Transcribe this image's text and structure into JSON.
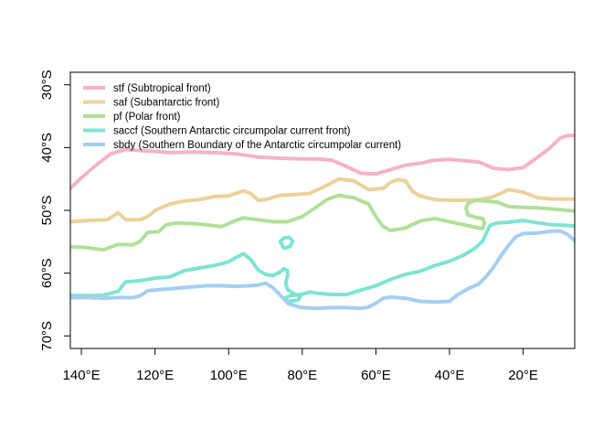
{
  "chart_data": {
    "type": "line",
    "title": "",
    "xlabel": "",
    "ylabel": "",
    "x_ticks": [
      {
        "value": 140,
        "label": "140°E"
      },
      {
        "value": 120,
        "label": "120°E"
      },
      {
        "value": 100,
        "label": "100°E"
      },
      {
        "value": 80,
        "label": "80°E"
      },
      {
        "value": 60,
        "label": "60°E"
      },
      {
        "value": 40,
        "label": "40°E"
      },
      {
        "value": 20,
        "label": "20°E"
      }
    ],
    "y_ticks": [
      {
        "value": -30,
        "label": "30°S"
      },
      {
        "value": -40,
        "label": "40°S"
      },
      {
        "value": -50,
        "label": "50°S"
      },
      {
        "value": -60,
        "label": "60°S"
      },
      {
        "value": -70,
        "label": "70°S"
      }
    ],
    "xlim": [
      143,
      6
    ],
    "ylim": [
      -72,
      -28
    ],
    "grid": false,
    "legend_position": "top-left",
    "series": [
      {
        "name": "stf (Subtropical front)",
        "color": "#f4b4c6",
        "points": [
          [
            143,
            -46.5
          ],
          [
            140,
            -44.8
          ],
          [
            136,
            -42.8
          ],
          [
            132,
            -41
          ],
          [
            128,
            -40.3
          ],
          [
            124,
            -40.5
          ],
          [
            120,
            -40.6
          ],
          [
            116,
            -40.8
          ],
          [
            110,
            -40.7
          ],
          [
            104,
            -40.8
          ],
          [
            98,
            -41
          ],
          [
            92,
            -41.5
          ],
          [
            86,
            -41.7
          ],
          [
            80,
            -41.8
          ],
          [
            76,
            -41.8
          ],
          [
            72,
            -42
          ],
          [
            68,
            -43
          ],
          [
            64,
            -44.1
          ],
          [
            60,
            -44.2
          ],
          [
            56,
            -43.5
          ],
          [
            52,
            -42.8
          ],
          [
            48,
            -42.5
          ],
          [
            44,
            -42
          ],
          [
            40,
            -41.9
          ],
          [
            36,
            -42.1
          ],
          [
            32,
            -42.3
          ],
          [
            28,
            -43.3
          ],
          [
            24,
            -43.5
          ],
          [
            20,
            -43.2
          ],
          [
            16,
            -41.5
          ],
          [
            13,
            -40.2
          ],
          [
            10,
            -38.5
          ],
          [
            8,
            -38.1
          ],
          [
            6,
            -38.1
          ]
        ]
      },
      {
        "name": "saf (Subantarctic front)",
        "color": "#ebd29b",
        "points": [
          [
            143,
            -51.8
          ],
          [
            138,
            -51.6
          ],
          [
            133,
            -51.5
          ],
          [
            130,
            -50.4
          ],
          [
            128,
            -51.5
          ],
          [
            124,
            -51.5
          ],
          [
            122,
            -51
          ],
          [
            120,
            -50
          ],
          [
            116,
            -49
          ],
          [
            112,
            -48.5
          ],
          [
            108,
            -48.3
          ],
          [
            104,
            -47.8
          ],
          [
            100,
            -47.7
          ],
          [
            96,
            -46.9
          ],
          [
            94,
            -47.3
          ],
          [
            92,
            -48.4
          ],
          [
            90,
            -48.3
          ],
          [
            86,
            -47.6
          ],
          [
            82,
            -47.5
          ],
          [
            78,
            -47.3
          ],
          [
            74,
            -46.2
          ],
          [
            70,
            -45
          ],
          [
            66,
            -45.3
          ],
          [
            62,
            -46.7
          ],
          [
            58,
            -46.5
          ],
          [
            56,
            -45.5
          ],
          [
            54,
            -45.1
          ],
          [
            52,
            -45.3
          ],
          [
            50,
            -47
          ],
          [
            48,
            -47.7
          ],
          [
            44,
            -48.3
          ],
          [
            40,
            -48.4
          ],
          [
            36,
            -48.4
          ],
          [
            32,
            -48.3
          ],
          [
            28,
            -47.8
          ],
          [
            24,
            -46.7
          ],
          [
            20,
            -47.1
          ],
          [
            16,
            -48
          ],
          [
            12,
            -48.2
          ],
          [
            6,
            -48.2
          ]
        ]
      },
      {
        "name": "pf (Polar front)",
        "color": "#b2df9a",
        "points": [
          [
            143,
            -55.8
          ],
          [
            139,
            -55.9
          ],
          [
            134,
            -56.3
          ],
          [
            130,
            -55.4
          ],
          [
            126,
            -55.5
          ],
          [
            124,
            -54.9
          ],
          [
            122,
            -53.5
          ],
          [
            119,
            -53.4
          ],
          [
            117,
            -52.3
          ],
          [
            114,
            -52
          ],
          [
            110,
            -52.1
          ],
          [
            106,
            -52.3
          ],
          [
            102,
            -52.6
          ],
          [
            98,
            -51.6
          ],
          [
            96,
            -51.2
          ],
          [
            92,
            -51.5
          ],
          [
            88,
            -51.8
          ],
          [
            84,
            -51.8
          ],
          [
            80,
            -51
          ],
          [
            77,
            -49.8
          ],
          [
            73,
            -48.2
          ],
          [
            70,
            -47.6
          ],
          [
            66,
            -48
          ],
          [
            62,
            -49
          ],
          [
            60,
            -51
          ],
          [
            58,
            -52.6
          ],
          [
            56,
            -53.2
          ],
          [
            52,
            -52.8
          ],
          [
            48,
            -51.7
          ],
          [
            44,
            -51.3
          ],
          [
            40,
            -51.8
          ],
          [
            36,
            -52.3
          ],
          [
            33,
            -52.7
          ],
          [
            31,
            -52.9
          ],
          [
            30.5,
            -52
          ],
          [
            31,
            -51.3
          ],
          [
            33,
            -51.1
          ],
          [
            35,
            -50.7
          ],
          [
            35.5,
            -49.7
          ],
          [
            35,
            -48.9
          ],
          [
            33,
            -48.4
          ],
          [
            30,
            -48.5
          ],
          [
            27,
            -48.7
          ],
          [
            24,
            -49.4
          ],
          [
            20,
            -49.5
          ],
          [
            16,
            -49.6
          ],
          [
            12,
            -49.8
          ],
          [
            8,
            -50
          ],
          [
            6,
            -50.1
          ]
        ]
      },
      {
        "name": "saccf (Southern Antarctic circumpolar current front)",
        "color": "#7fe3d2",
        "points": [
          [
            143,
            -63.6
          ],
          [
            138,
            -63.6
          ],
          [
            134,
            -63.5
          ],
          [
            130,
            -62.9
          ],
          [
            128,
            -61.4
          ],
          [
            124,
            -61.2
          ],
          [
            120,
            -60.8
          ],
          [
            116,
            -60.6
          ],
          [
            112,
            -59.6
          ],
          [
            108,
            -59.2
          ],
          [
            104,
            -58.8
          ],
          [
            100,
            -58.2
          ],
          [
            98,
            -57.5
          ],
          [
            96,
            -56.9
          ],
          [
            94,
            -57.8
          ],
          [
            92,
            -59.5
          ],
          [
            90,
            -60.2
          ],
          [
            88,
            -60.4
          ],
          [
            86,
            -59.8
          ],
          [
            85,
            -59.3
          ],
          [
            84,
            -59.6
          ],
          [
            84,
            -60.4
          ],
          [
            84.5,
            -61.6
          ],
          [
            84,
            -62.6
          ],
          [
            82,
            -63.4
          ],
          [
            80.5,
            -63.7
          ],
          [
            81,
            -64.2
          ],
          [
            82,
            -64.4
          ],
          [
            84,
            -64.5
          ],
          [
            84.8,
            -64
          ],
          [
            83.2,
            -63.6
          ],
          [
            80.2,
            -63.4
          ],
          [
            78,
            -63
          ],
          [
            76,
            -63.2
          ],
          [
            72,
            -63.4
          ],
          [
            68,
            -63.4
          ],
          [
            64,
            -62.7
          ],
          [
            60,
            -62
          ],
          [
            56,
            -61
          ],
          [
            52,
            -60.2
          ],
          [
            48,
            -59.7
          ],
          [
            44,
            -58.8
          ],
          [
            40,
            -58.1
          ],
          [
            36,
            -57.1
          ],
          [
            33,
            -56
          ],
          [
            31,
            -54.9
          ],
          [
            30,
            -53.6
          ],
          [
            29,
            -52.4
          ],
          [
            27,
            -52
          ],
          [
            24,
            -51.9
          ],
          [
            20,
            -51.6
          ],
          [
            16,
            -52
          ],
          [
            12,
            -52.3
          ],
          [
            8,
            -52.4
          ],
          [
            6,
            -52.5
          ]
        ]
      },
      {
        "name": "sbdy (Southern Boundary of the Antarctic circumpolar current)",
        "color": "#a6cef2",
        "points": [
          [
            143,
            -63.9
          ],
          [
            138,
            -63.9
          ],
          [
            134,
            -64
          ],
          [
            130,
            -63.9
          ],
          [
            126,
            -63.9
          ],
          [
            124,
            -63.6
          ],
          [
            122,
            -62.8
          ],
          [
            118,
            -62.6
          ],
          [
            114,
            -62.4
          ],
          [
            110,
            -62.2
          ],
          [
            106,
            -62
          ],
          [
            102,
            -62
          ],
          [
            98,
            -62.1
          ],
          [
            94,
            -62
          ],
          [
            92,
            -61.9
          ],
          [
            90,
            -61.6
          ],
          [
            88,
            -62.3
          ],
          [
            86,
            -63.5
          ],
          [
            84,
            -64.8
          ],
          [
            82,
            -65.2
          ],
          [
            80,
            -65.5
          ],
          [
            76,
            -65.6
          ],
          [
            72,
            -65.5
          ],
          [
            68,
            -65.5
          ],
          [
            64,
            -65.6
          ],
          [
            62,
            -65.4
          ],
          [
            60,
            -64.8
          ],
          [
            58,
            -64
          ],
          [
            56,
            -63.8
          ],
          [
            52,
            -64
          ],
          [
            48,
            -64.5
          ],
          [
            44,
            -64.6
          ],
          [
            40,
            -64.5
          ],
          [
            38,
            -63.5
          ],
          [
            35,
            -62.5
          ],
          [
            32,
            -61.7
          ],
          [
            30,
            -60.5
          ],
          [
            28,
            -59
          ],
          [
            26,
            -57.2
          ],
          [
            24,
            -55.6
          ],
          [
            22,
            -54.2
          ],
          [
            20,
            -53.7
          ],
          [
            16,
            -53.6
          ],
          [
            12,
            -53.3
          ],
          [
            10,
            -53.3
          ],
          [
            8,
            -53.8
          ],
          [
            6,
            -54.8
          ]
        ]
      },
      {
        "name": "",
        "color": "#7fe3d2",
        "closed": true,
        "points": [
          [
            85.5,
            -55.4
          ],
          [
            86,
            -55
          ],
          [
            85,
            -54.4
          ],
          [
            83.5,
            -54.3
          ],
          [
            82.6,
            -54.9
          ],
          [
            83.2,
            -55.7
          ],
          [
            84.5,
            -56
          ],
          [
            85.3,
            -55.9
          ]
        ]
      }
    ]
  }
}
